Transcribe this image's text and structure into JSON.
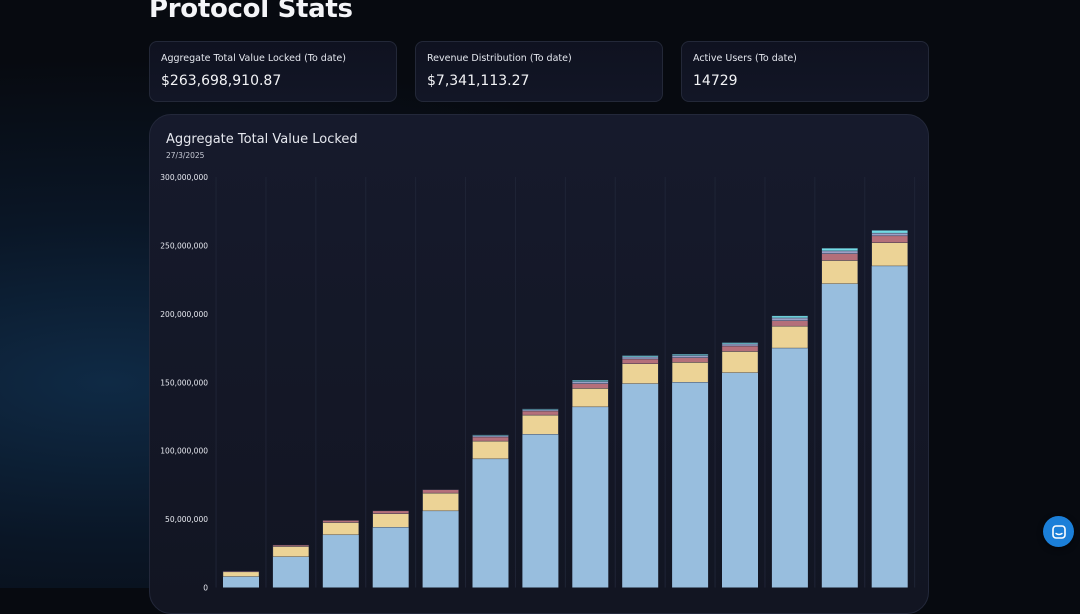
{
  "page": {
    "title": "Protocol Stats"
  },
  "stats": [
    {
      "label": "Aggregate Total Value Locked (To date)",
      "value": "$263,698,910.87"
    },
    {
      "label": "Revenue Distribution (To date)",
      "value": "$7,341,113.27"
    },
    {
      "label": "Active Users (To date)",
      "value": "14729"
    }
  ],
  "chart": {
    "title": "Aggregate Total Value Locked",
    "subtitle": "27/3/2025"
  },
  "chart_data": {
    "type": "bar",
    "stacked": true,
    "title": "Aggregate Total Value Locked",
    "subtitle": "27/3/2025",
    "ylim": [
      0,
      300000000
    ],
    "yticks": [
      0,
      50000000,
      100000000,
      150000000,
      200000000,
      250000000,
      300000000
    ],
    "ytick_labels": [
      "0",
      "50,000,000",
      "100,000,000",
      "150,000,000",
      "200,000,000",
      "250,000,000",
      "300,000,000"
    ],
    "grid": true,
    "series": [
      {
        "color": "#98bede",
        "values": [
          8000000,
          22500000,
          38500000,
          44000000,
          56000000,
          94000000,
          112000000,
          132000000,
          149000000,
          150000000,
          157000000,
          175000000,
          222000000,
          235000000
        ]
      },
      {
        "color": "#ecd396",
        "values": [
          3500000,
          7500000,
          9000000,
          10000000,
          13000000,
          13000000,
          14000000,
          13500000,
          14500000,
          14500000,
          15500000,
          16000000,
          17000000,
          17000000
        ]
      },
      {
        "color": "#b46f7a",
        "values": [
          500000,
          1000000,
          1500000,
          2000000,
          2500000,
          3000000,
          3000000,
          3500000,
          3500000,
          3500000,
          4000000,
          4000000,
          5000000,
          5000000
        ]
      },
      {
        "color": "#9aa1c7",
        "values": [
          0,
          0,
          0,
          0,
          0,
          1000000,
          1000000,
          1500000,
          1500000,
          1500000,
          1500000,
          2000000,
          2000000,
          2000000
        ]
      },
      {
        "color": "#73dbe6",
        "values": [
          0,
          0,
          0,
          0,
          0,
          500000,
          500000,
          1000000,
          1000000,
          1000000,
          1000000,
          1500000,
          2000000,
          2000000
        ]
      }
    ]
  },
  "icons": {
    "chat": "chat-bubble-icon"
  },
  "colors": {
    "chat_button": "#1b7fd8"
  }
}
